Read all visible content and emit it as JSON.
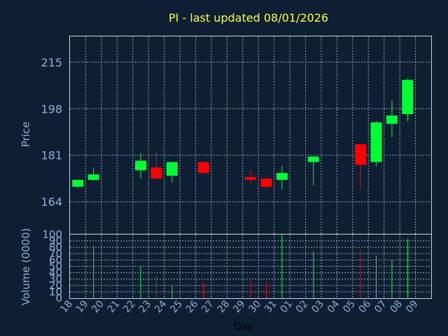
{
  "colors": {
    "background": "#0f1f33",
    "title": "#ffff33",
    "up": "#00ff33",
    "down": "#ff0000",
    "text": "#8fb0d6",
    "grid": "#c8d4e2"
  },
  "chart_data": [
    {
      "type": "candlestick",
      "title": "PI - last updated 08/01/2026",
      "ylabel": "Price",
      "ylim": [
        152.3,
        224.4
      ],
      "yticks": [
        "164",
        "181",
        "198",
        "215"
      ],
      "grid": true,
      "days": [
        "18",
        "19",
        "20",
        "21",
        "22",
        "23",
        "24",
        "25",
        "26",
        "27",
        "28",
        "29",
        "30",
        "31",
        "01",
        "02",
        "03",
        "04",
        "05",
        "06",
        "07",
        "08",
        "09"
      ],
      "candles": [
        {
          "day": "18",
          "open": 169.5,
          "high": 172.0,
          "low": 169.0,
          "close": 172.0
        },
        {
          "day": "19",
          "open": 172.0,
          "high": 176.5,
          "low": 171.5,
          "close": 174.0
        },
        {
          "day": "22",
          "open": 175.5,
          "high": 181.8,
          "low": 172.5,
          "close": 179.0
        },
        {
          "day": "23",
          "open": 176.5,
          "high": 182.0,
          "low": 172.0,
          "close": 172.5
        },
        {
          "day": "24",
          "open": 173.5,
          "high": 178.5,
          "low": 171.0,
          "close": 178.5
        },
        {
          "day": "26",
          "open": 178.5,
          "high": 178.5,
          "low": 174.5,
          "close": 174.5
        },
        {
          "day": "29",
          "open": 173.0,
          "high": 175.5,
          "low": 170.5,
          "close": 172.0
        },
        {
          "day": "30",
          "open": 172.5,
          "high": 172.5,
          "low": 169.0,
          "close": 169.5
        },
        {
          "day": "31",
          "open": 172.0,
          "high": 177.0,
          "low": 168.5,
          "close": 174.5
        },
        {
          "day": "02",
          "open": 178.5,
          "high": 180.5,
          "low": 170.0,
          "close": 180.5
        },
        {
          "day": "05",
          "open": 185.0,
          "high": 185.0,
          "low": 168.5,
          "close": 177.5
        },
        {
          "day": "06",
          "open": 178.5,
          "high": 193.5,
          "low": 177.0,
          "close": 193.0
        },
        {
          "day": "07",
          "open": 192.5,
          "high": 201.0,
          "low": 187.5,
          "close": 195.5
        },
        {
          "day": "08",
          "open": 196.0,
          "high": 209.0,
          "low": 193.5,
          "close": 208.5
        }
      ]
    },
    {
      "type": "bar",
      "ylabel": "Volume (0000)",
      "ylim": [
        0,
        100
      ],
      "yticks": [
        "0",
        "10",
        "20",
        "30",
        "40",
        "50",
        "60",
        "70",
        "80",
        "90",
        "100"
      ],
      "xlabel": "Day",
      "volumes": [
        {
          "day": "19",
          "value": 82,
          "direction": "up"
        },
        {
          "day": "22",
          "value": 50,
          "direction": "up"
        },
        {
          "day": "23",
          "value": 35,
          "direction": "down"
        },
        {
          "day": "24",
          "value": 20,
          "direction": "up"
        },
        {
          "day": "26",
          "value": 25,
          "direction": "down"
        },
        {
          "day": "29",
          "value": 28,
          "direction": "down"
        },
        {
          "day": "30",
          "value": 25,
          "direction": "down"
        },
        {
          "day": "31",
          "value": 100,
          "direction": "up"
        },
        {
          "day": "02",
          "value": 73,
          "direction": "up"
        },
        {
          "day": "05",
          "value": 75,
          "direction": "down"
        },
        {
          "day": "06",
          "value": 67,
          "direction": "up"
        },
        {
          "day": "07",
          "value": 60,
          "direction": "up"
        },
        {
          "day": "08",
          "value": 93,
          "direction": "up"
        }
      ]
    }
  ]
}
